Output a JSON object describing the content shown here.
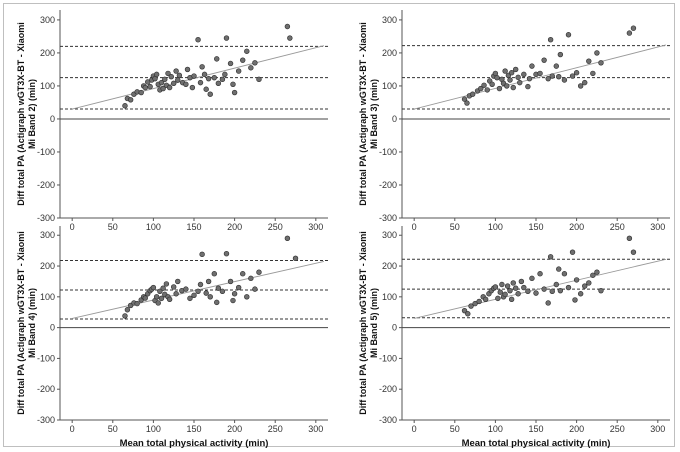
{
  "chart_data": [
    {
      "type": "scatter",
      "ylabel_lines": [
        "Diff total PA (Actigraph wGT3X-BT - Xiaomi",
        "Mi Band 2) (min)"
      ],
      "xlabel": "",
      "xlim": [
        -15,
        315
      ],
      "ylim": [
        -300,
        330
      ],
      "xticks": [
        0,
        50,
        100,
        150,
        200,
        250,
        300
      ],
      "yticks": [
        -300,
        -200,
        -100,
        0,
        100,
        200,
        300
      ],
      "mean_bias": 125,
      "upper_loa": 220,
      "lower_loa": 30,
      "regression": {
        "x": [
          0,
          310
        ],
        "y": [
          30,
          222
        ]
      },
      "points": {
        "x": [
          65,
          68,
          72,
          76,
          80,
          85,
          88,
          90,
          93,
          96,
          98,
          100,
          102,
          104,
          106,
          108,
          110,
          112,
          114,
          116,
          118,
          120,
          122,
          125,
          128,
          130,
          132,
          136,
          140,
          142,
          145,
          148,
          150,
          155,
          158,
          160,
          163,
          165,
          168,
          170,
          175,
          178,
          180,
          185,
          188,
          190,
          195,
          198,
          200,
          205,
          210,
          215,
          220,
          225,
          230,
          265,
          268
        ],
        "y": [
          40,
          62,
          58,
          75,
          82,
          80,
          100,
          95,
          112,
          98,
          118,
          130,
          122,
          135,
          105,
          88,
          110,
          92,
          120,
          102,
          138,
          95,
          128,
          108,
          145,
          118,
          132,
          110,
          105,
          150,
          125,
          95,
          130,
          240,
          110,
          158,
          135,
          90,
          122,
          75,
          125,
          182,
          108,
          120,
          135,
          245,
          168,
          105,
          80,
          145,
          178,
          205,
          155,
          170,
          120,
          280,
          245
        ]
      }
    },
    {
      "type": "scatter",
      "ylabel_lines": [
        "Diff total PA (Actigraph wGT3X-BT - Xiaomi",
        "Mi Band 3) (min)"
      ],
      "xlabel": "",
      "xlim": [
        -15,
        315
      ],
      "ylim": [
        -300,
        330
      ],
      "xticks": [
        0,
        50,
        100,
        150,
        200,
        250,
        300
      ],
      "yticks": [
        -300,
        -200,
        -100,
        0,
        100,
        200,
        300
      ],
      "mean_bias": 125,
      "upper_loa": 222,
      "lower_loa": 30,
      "regression": {
        "x": [
          0,
          310
        ],
        "y": [
          30,
          224
        ]
      },
      "points": {
        "x": [
          62,
          65,
          68,
          72,
          78,
          82,
          86,
          90,
          93,
          96,
          98,
          100,
          102,
          105,
          108,
          110,
          112,
          114,
          116,
          118,
          120,
          122,
          125,
          128,
          130,
          135,
          140,
          142,
          145,
          150,
          155,
          160,
          165,
          168,
          170,
          175,
          178,
          180,
          185,
          190,
          195,
          200,
          205,
          210,
          215,
          220,
          225,
          230,
          265,
          270
        ],
        "y": [
          60,
          48,
          70,
          75,
          85,
          92,
          102,
          88,
          115,
          105,
          130,
          138,
          125,
          92,
          120,
          108,
          145,
          100,
          132,
          118,
          140,
          95,
          150,
          126,
          110,
          135,
          98,
          122,
          160,
          135,
          138,
          178,
          122,
          240,
          130,
          160,
          128,
          195,
          118,
          255,
          130,
          140,
          100,
          110,
          175,
          138,
          200,
          170,
          260,
          275
        ]
      }
    },
    {
      "type": "scatter",
      "ylabel_lines": [
        "Diff total PA (Actigraph wGT3X-BT - Xiaomi",
        "Mi Band 4) (min)"
      ],
      "xlabel": "Mean total physical activity (min)",
      "xlim": [
        -15,
        315
      ],
      "ylim": [
        -300,
        330
      ],
      "xticks": [
        0,
        50,
        100,
        150,
        200,
        250,
        300
      ],
      "yticks": [
        -300,
        -200,
        -100,
        0,
        100,
        200,
        300
      ],
      "mean_bias": 122,
      "upper_loa": 218,
      "lower_loa": 28,
      "regression": {
        "x": [
          0,
          310
        ],
        "y": [
          30,
          215
        ]
      },
      "points": {
        "x": [
          65,
          68,
          72,
          76,
          80,
          85,
          88,
          90,
          93,
          96,
          98,
          100,
          102,
          104,
          106,
          108,
          110,
          112,
          114,
          116,
          118,
          120,
          125,
          128,
          130,
          135,
          140,
          145,
          150,
          155,
          158,
          160,
          165,
          168,
          170,
          175,
          178,
          180,
          185,
          190,
          195,
          198,
          200,
          205,
          210,
          215,
          220,
          225,
          230,
          265,
          275
        ],
        "y": [
          38,
          58,
          72,
          80,
          78,
          90,
          100,
          96,
          110,
          120,
          125,
          130,
          88,
          100,
          80,
          118,
          95,
          128,
          108,
          142,
          100,
          92,
          132,
          110,
          150,
          120,
          125,
          95,
          105,
          118,
          140,
          238,
          112,
          150,
          100,
          175,
          82,
          128,
          118,
          240,
          150,
          88,
          110,
          130,
          175,
          100,
          160,
          125,
          180,
          290,
          225
        ]
      }
    },
    {
      "type": "scatter",
      "ylabel_lines": [
        "Diff total PA (Actigraph wGT3X-BT - Xiaomi",
        "Mi Band 5) (min)"
      ],
      "xlabel": "Mean total physical activity (min)",
      "xlim": [
        -15,
        315
      ],
      "ylim": [
        -300,
        330
      ],
      "xticks": [
        0,
        50,
        100,
        150,
        200,
        250,
        300
      ],
      "yticks": [
        -300,
        -200,
        -100,
        0,
        100,
        200,
        300
      ],
      "mean_bias": 125,
      "upper_loa": 222,
      "lower_loa": 32,
      "regression": {
        "x": [
          0,
          310
        ],
        "y": [
          30,
          222
        ]
      },
      "points": {
        "x": [
          62,
          66,
          70,
          75,
          80,
          85,
          88,
          92,
          95,
          98,
          100,
          103,
          106,
          108,
          110,
          112,
          115,
          118,
          120,
          122,
          125,
          128,
          132,
          135,
          140,
          145,
          150,
          155,
          160,
          165,
          168,
          170,
          175,
          178,
          180,
          185,
          190,
          195,
          198,
          200,
          205,
          210,
          215,
          220,
          225,
          230,
          265,
          270
        ],
        "y": [
          55,
          45,
          70,
          78,
          85,
          100,
          92,
          110,
          120,
          128,
          132,
          95,
          115,
          140,
          100,
          108,
          135,
          120,
          92,
          145,
          128,
          110,
          150,
          130,
          118,
          160,
          112,
          175,
          125,
          80,
          230,
          118,
          140,
          190,
          120,
          175,
          130,
          245,
          90,
          155,
          110,
          135,
          145,
          170,
          180,
          120,
          290,
          245
        ]
      }
    }
  ]
}
